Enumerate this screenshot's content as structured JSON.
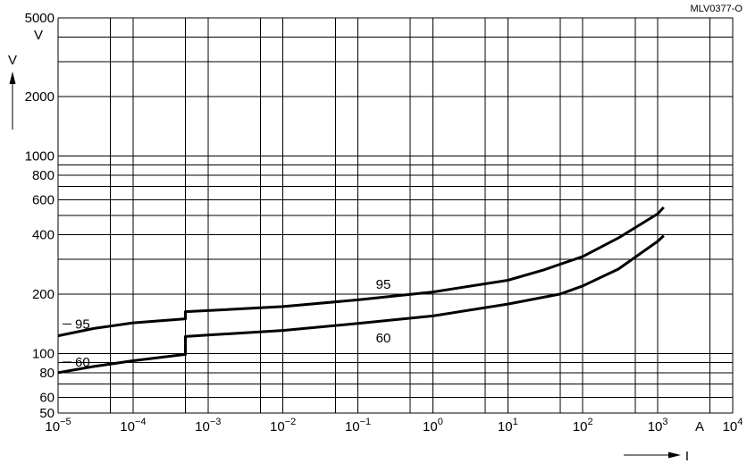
{
  "chart_data": {
    "type": "line",
    "figure_code": "MLV0377-O",
    "xlabel": "I",
    "ylabel": "V",
    "x_unit": "A",
    "y_unit": "V",
    "x_scale": "log",
    "y_scale": "log",
    "xlim": [
      1e-05,
      10000
    ],
    "ylim": [
      50,
      5000
    ],
    "grid": true,
    "x_ticks": [
      {
        "base": "10",
        "exp": "−5",
        "value": 1e-05
      },
      {
        "base": "10",
        "exp": "−4",
        "value": 0.0001
      },
      {
        "base": "10",
        "exp": "−3",
        "value": 0.001
      },
      {
        "base": "10",
        "exp": "−2",
        "value": 0.01
      },
      {
        "base": "10",
        "exp": "−1",
        "value": 0.1
      },
      {
        "base": "10",
        "exp": "0",
        "value": 1
      },
      {
        "base": "10",
        "exp": "1",
        "value": 10
      },
      {
        "base": "10",
        "exp": "2",
        "value": 100
      },
      {
        "base": "10",
        "exp": "3",
        "value": 1000
      },
      {
        "base": "10",
        "exp": "4",
        "value": 10000
      }
    ],
    "y_ticks": [
      {
        "label": "5000",
        "value": 5000
      },
      {
        "label": "2000",
        "value": 2000
      },
      {
        "label": "1000",
        "value": 1000
      },
      {
        "label": "800",
        "value": 800
      },
      {
        "label": "600",
        "value": 600
      },
      {
        "label": "400",
        "value": 400
      },
      {
        "label": "200",
        "value": 200
      },
      {
        "label": "100",
        "value": 100
      },
      {
        "label": "80",
        "value": 80
      },
      {
        "label": "60",
        "value": 60
      },
      {
        "label": "50",
        "value": 50
      }
    ],
    "series": [
      {
        "name": "95",
        "points": [
          [
            1e-05,
            123
          ],
          [
            3e-05,
            134
          ],
          [
            0.0001,
            143
          ],
          [
            0.0005,
            150
          ],
          [
            0.0005,
            163
          ],
          [
            0.001,
            165
          ],
          [
            0.01,
            173
          ],
          [
            0.1,
            187
          ],
          [
            1,
            205
          ],
          [
            10,
            235
          ],
          [
            30,
            265
          ],
          [
            100,
            310
          ],
          [
            300,
            385
          ],
          [
            1000,
            510
          ],
          [
            1200,
            550
          ]
        ]
      },
      {
        "name": "60",
        "points": [
          [
            1e-05,
            80
          ],
          [
            3e-05,
            86
          ],
          [
            0.0001,
            92
          ],
          [
            0.0005,
            99
          ],
          [
            0.0005,
            122
          ],
          [
            0.001,
            124
          ],
          [
            0.01,
            131
          ],
          [
            0.1,
            142
          ],
          [
            1,
            155
          ],
          [
            10,
            178
          ],
          [
            50,
            200
          ],
          [
            100,
            220
          ],
          [
            300,
            268
          ],
          [
            1000,
            370
          ],
          [
            1200,
            395
          ]
        ]
      }
    ]
  }
}
